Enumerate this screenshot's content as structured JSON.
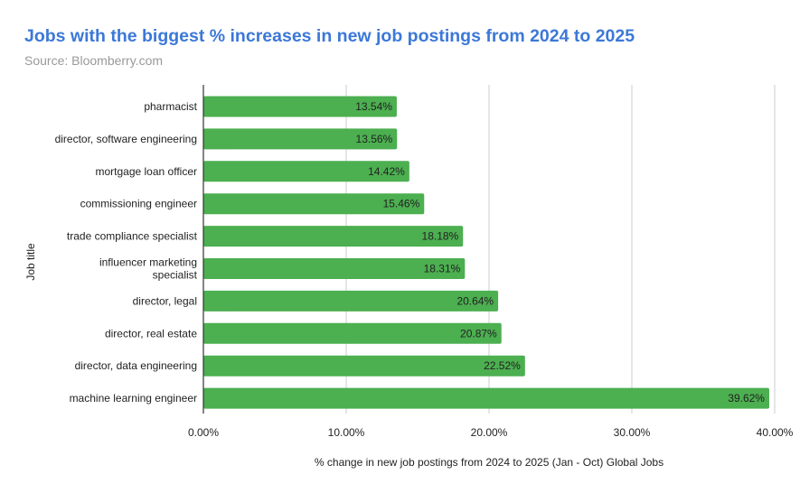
{
  "chart_data": {
    "type": "bar",
    "orientation": "horizontal",
    "title": "Jobs with the biggest % increases in new job postings from 2024 to 2025",
    "subtitle": "Source: Bloomberry.com",
    "xlabel": "% change in new job postings from 2024 to 2025 (Jan - Oct) Global Jobs",
    "ylabel": "Job title",
    "categories": [
      "pharmacist",
      "director, software engineering",
      "mortgage loan officer",
      "commissioning engineer",
      "trade compliance specialist",
      "influencer marketing specialist",
      "director, legal",
      "director, real estate",
      "director, data engineering",
      "machine learning engineer"
    ],
    "values": [
      13.54,
      13.56,
      14.42,
      15.46,
      18.18,
      18.31,
      20.64,
      20.87,
      22.52,
      39.62
    ],
    "data_labels": [
      "13.54%",
      "13.56%",
      "14.42%",
      "15.46%",
      "18.18%",
      "18.31%",
      "20.64%",
      "20.87%",
      "22.52%",
      "39.62%"
    ],
    "xlim": [
      0,
      40
    ],
    "xticks": [
      0,
      10,
      20,
      30,
      40
    ],
    "xtick_labels": [
      "0.00%",
      "10.00%",
      "20.00%",
      "30.00%",
      "40.00%"
    ],
    "grid": true,
    "legend": "none",
    "bar_color": "#4caf50",
    "title_color": "#3c78d8"
  }
}
